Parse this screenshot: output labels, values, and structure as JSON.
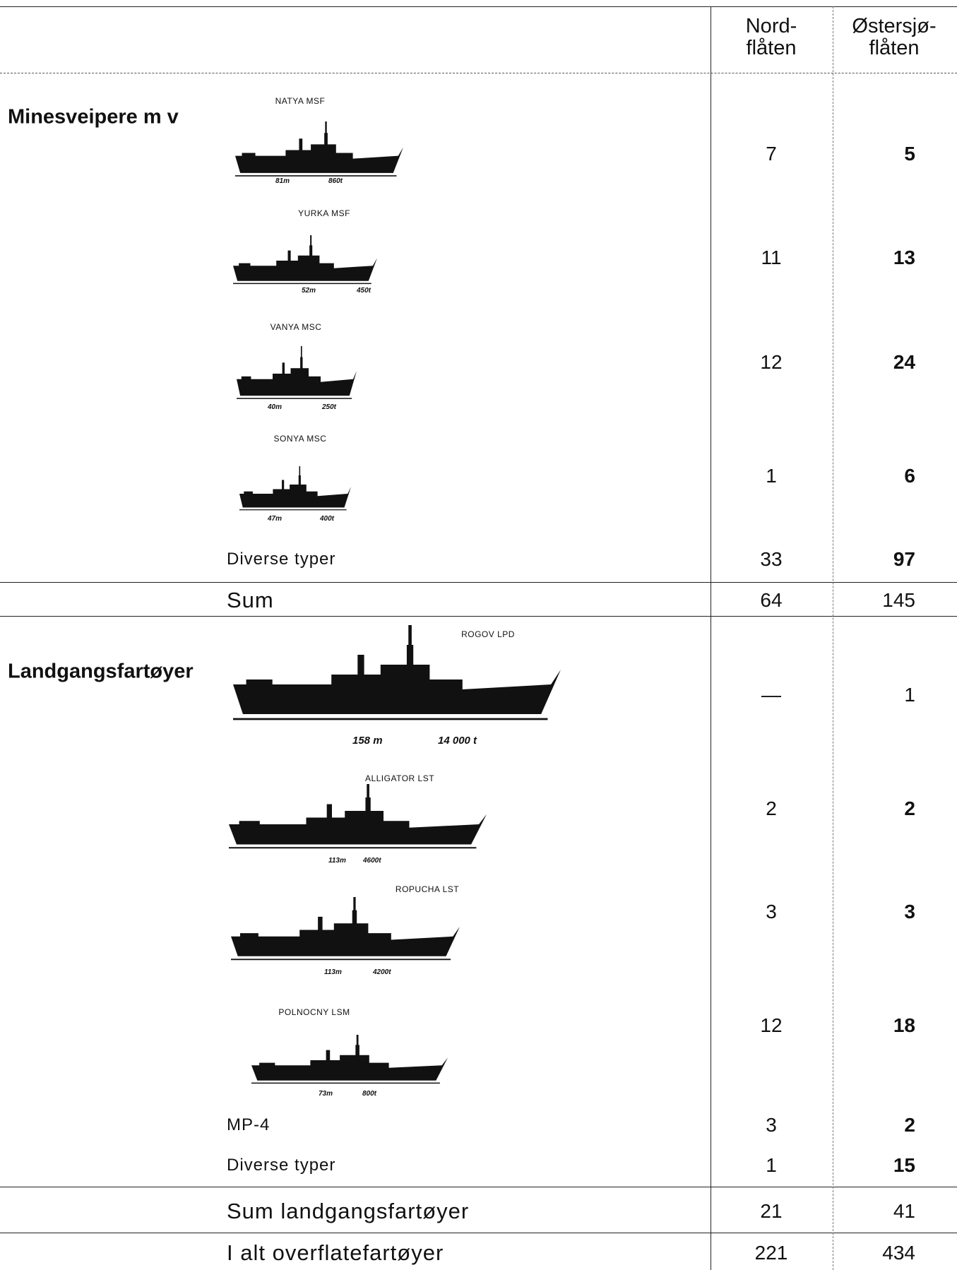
{
  "header": {
    "columns": [
      [
        "Nord-",
        "flåten"
      ],
      [
        "Østersjø-",
        "flåten"
      ]
    ]
  },
  "sections": [
    {
      "title": "Minesveipere m v",
      "ships": [
        {
          "name": "NATYA MSF",
          "length": "81m",
          "tonnage": "860t",
          "values": [
            7,
            5
          ]
        },
        {
          "name": "YURKA MSF",
          "length": "52m",
          "tonnage": "450t",
          "values": [
            11,
            13
          ]
        },
        {
          "name": "VANYA MSC",
          "length": "40m",
          "tonnage": "250t",
          "values": [
            12,
            24
          ]
        },
        {
          "name": "SONYA MSC",
          "length": "47m",
          "tonnage": "400t",
          "values": [
            1,
            6
          ]
        }
      ],
      "rows": [
        {
          "label": "Diverse typer",
          "values": [
            33,
            97
          ]
        }
      ],
      "sum": {
        "label": "Sum",
        "values": [
          64,
          145
        ]
      }
    },
    {
      "title": "Landgangsfartøyer",
      "ships": [
        {
          "name": "ROGOV LPD",
          "length": "158 m",
          "tonnage": "14 000 t",
          "values": [
            "—",
            1
          ]
        },
        {
          "name": "ALLIGATOR LST",
          "length": "113m",
          "tonnage": "4600t",
          "values": [
            2,
            2
          ]
        },
        {
          "name": "ROPUCHA LST",
          "length": "113m",
          "tonnage": "4200t",
          "values": [
            3,
            3
          ]
        },
        {
          "name": "POLNOCNY LSM",
          "length": "73m",
          "tonnage": "800t",
          "values": [
            12,
            18
          ]
        }
      ],
      "rows": [
        {
          "label": "MP-4",
          "values": [
            3,
            2
          ]
        },
        {
          "label": "Diverse typer",
          "values": [
            1,
            15
          ]
        }
      ],
      "sum": {
        "label": "Sum landgangsfartøyer",
        "values": [
          21,
          41
        ]
      }
    }
  ],
  "total": {
    "label": "I alt overflatefartøyer",
    "values": [
      221,
      434
    ]
  }
}
